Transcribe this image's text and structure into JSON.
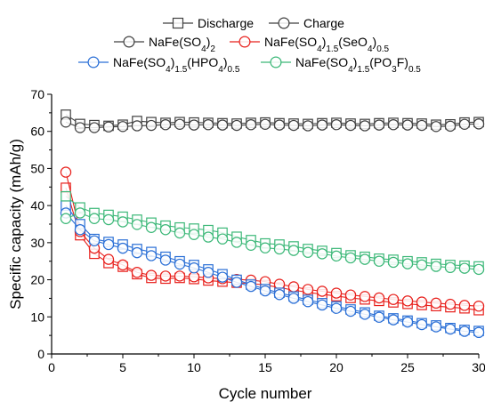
{
  "chart_data": {
    "type": "scatter",
    "xlabel": "Cycle number",
    "ylabel": "Specific capacity (mAh/g)",
    "xlim": [
      0,
      30
    ],
    "ylim": [
      0,
      70
    ],
    "x_ticks": [
      0,
      5,
      10,
      15,
      20,
      25,
      30
    ],
    "y_ticks": [
      0,
      10,
      20,
      30,
      40,
      50,
      60,
      70
    ],
    "grid": false,
    "legend_placement": "top-center",
    "marker_legend": [
      {
        "label": "Discharge",
        "marker": "square"
      },
      {
        "label": "Charge",
        "marker": "circle"
      }
    ],
    "x": [
      1,
      2,
      3,
      4,
      5,
      6,
      7,
      8,
      9,
      10,
      11,
      12,
      13,
      14,
      15,
      16,
      17,
      18,
      19,
      20,
      21,
      22,
      23,
      24,
      25,
      26,
      27,
      28,
      29,
      30
    ],
    "series": [
      {
        "name": "NaFe(SO4)2",
        "label_parts": [
          [
            "NaFe(SO",
            ""
          ],
          [
            "4",
            "sub"
          ],
          [
            ")",
            ""
          ],
          [
            "2",
            "sub"
          ]
        ],
        "color": "#404040",
        "discharge": [
          64.5,
          62,
          61.7,
          61.5,
          61.8,
          62.8,
          62.5,
          62.3,
          62.5,
          62.4,
          62.3,
          62.2,
          62.1,
          62.3,
          62.4,
          62.2,
          62.1,
          62,
          62.2,
          62.3,
          62.1,
          62,
          62.2,
          62.3,
          62.2,
          62.1,
          61.8,
          61.9,
          62.4,
          62.5
        ],
        "charge": [
          62.5,
          61,
          61,
          61.2,
          61.3,
          61.5,
          61.6,
          61.8,
          61.9,
          61.7,
          61.8,
          61.7,
          61.6,
          61.8,
          61.9,
          61.7,
          61.6,
          61.5,
          61.7,
          61.8,
          61.6,
          61.5,
          61.7,
          61.8,
          61.7,
          61.6,
          61.3,
          61.4,
          61.9,
          62
        ]
      },
      {
        "name": "NaFe(SO4)1.5(SeO4)0.5",
        "label_parts": [
          [
            "NaFe(SO",
            ""
          ],
          [
            "4",
            "sub"
          ],
          [
            ")",
            ""
          ],
          [
            "1.5",
            "sub"
          ],
          [
            "(SeO",
            ""
          ],
          [
            "4",
            "sub"
          ],
          [
            ")",
            ""
          ],
          [
            "0.5",
            "sub"
          ]
        ],
        "color": "#e8201c",
        "discharge": [
          44.8,
          32,
          27,
          24.5,
          23.5,
          21.5,
          20.5,
          20.3,
          20.5,
          20.2,
          19.8,
          19.5,
          19.2,
          19,
          18.6,
          17.9,
          17.2,
          16.6,
          16.1,
          15.6,
          15.1,
          14.7,
          14.3,
          13.9,
          13.5,
          13.2,
          12.9,
          12.6,
          12.3,
          11.8
        ],
        "charge": [
          49,
          33,
          28.5,
          25.5,
          24,
          22,
          21.2,
          21,
          21,
          20.8,
          20.5,
          20.3,
          20.1,
          19.9,
          19.5,
          18.8,
          18.1,
          17.4,
          16.9,
          16.4,
          15.9,
          15.5,
          15.1,
          14.7,
          14.3,
          14,
          13.7,
          13.4,
          13.1,
          12.9
        ]
      },
      {
        "name": "NaFe(SO4)1.5(HPO4)0.5",
        "label_parts": [
          [
            "NaFe(SO",
            ""
          ],
          [
            "4",
            "sub"
          ],
          [
            ")",
            ""
          ],
          [
            "1.5",
            "sub"
          ],
          [
            "(HPO",
            ""
          ],
          [
            "4",
            "sub"
          ],
          [
            ")",
            ""
          ],
          [
            "0.5",
            "sub"
          ]
        ],
        "color": "#2a6fd6",
        "discharge": [
          40,
          35,
          31,
          30.2,
          29.5,
          28.3,
          27.5,
          26.2,
          25,
          24,
          22.8,
          21.5,
          20,
          18.7,
          17.5,
          16.5,
          15.5,
          14.6,
          13.7,
          12.8,
          12,
          11.2,
          10.3,
          9.6,
          9,
          8.3,
          7.7,
          7,
          6.5,
          6.2
        ],
        "charge": [
          38,
          33.5,
          30.5,
          29.5,
          28.5,
          27.3,
          26.5,
          25.3,
          24.2,
          23.2,
          22,
          20.7,
          19.3,
          18.2,
          17,
          16,
          15,
          14.1,
          13.2,
          12.3,
          11.5,
          10.7,
          9.9,
          9.2,
          8.6,
          7.9,
          7.3,
          6.7,
          6.1,
          5.8
        ]
      },
      {
        "name": "NaFe(SO4)1.5(PO3F)0.5",
        "label_parts": [
          [
            "NaFe(SO",
            ""
          ],
          [
            "4",
            "sub"
          ],
          [
            ")",
            ""
          ],
          [
            "1.5",
            "sub"
          ],
          [
            "(PO",
            ""
          ],
          [
            "3",
            "sub"
          ],
          [
            "F)",
            ""
          ],
          [
            "0.5",
            "sub"
          ]
        ],
        "color": "#3cb878",
        "discharge": [
          42.5,
          39.5,
          38,
          37.5,
          37,
          36.2,
          35.4,
          34.6,
          34.1,
          33.8,
          33.4,
          32.7,
          31.6,
          30.7,
          29.8,
          29.5,
          29,
          28.3,
          27.8,
          27.2,
          26.6,
          26.2,
          25.7,
          25.4,
          25,
          24.7,
          24.3,
          24,
          23.8,
          23.6
        ],
        "charge": [
          36.5,
          38,
          36.5,
          36.2,
          35.6,
          34.9,
          34.1,
          33.5,
          32.6,
          32.2,
          31.5,
          31,
          30.1,
          29.3,
          28.6,
          28.3,
          27.9,
          27.4,
          27,
          26.4,
          25.9,
          25.5,
          25,
          24.7,
          24.3,
          24,
          23.6,
          23.3,
          23.1,
          22.8
        ]
      }
    ]
  }
}
